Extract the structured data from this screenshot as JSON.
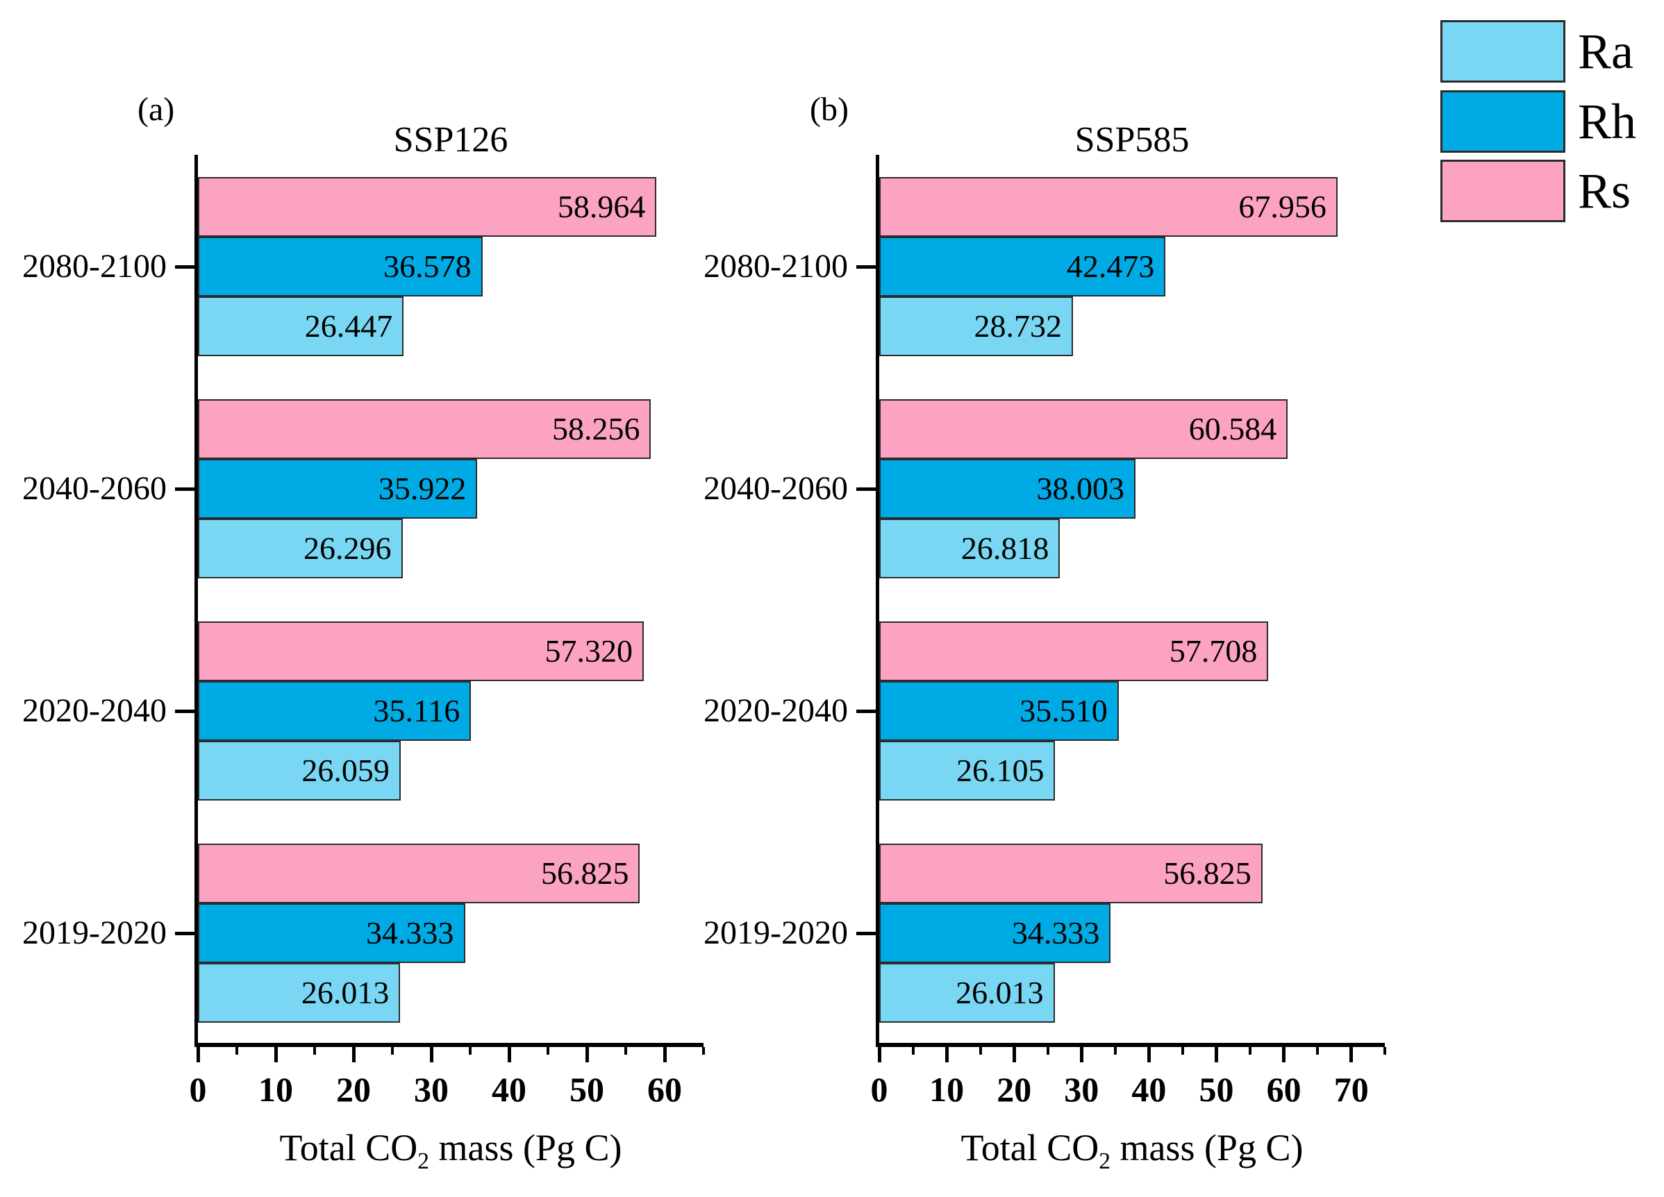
{
  "legend": {
    "position": "top-right",
    "items": [
      {
        "label": "Ra",
        "color": "#79D7F3"
      },
      {
        "label": "Rh",
        "color": "#00ABE5"
      },
      {
        "label": "Rs",
        "color": "#FCA3C4"
      }
    ]
  },
  "xaxis_label": {
    "pre": "Total CO",
    "sub": "2",
    "post": " mass (Pg C)"
  },
  "chart_data": [
    {
      "type": "bar",
      "orientation": "horizontal",
      "panel_label": "(a)",
      "title": "SSP126",
      "xlabel": "Total CO2 mass (Pg C)",
      "categories": [
        "2080-2100",
        "2040-2060",
        "2020-2040",
        "2019-2020"
      ],
      "series": [
        {
          "name": "Rs",
          "color": "#FCA3C4",
          "values": [
            58.964,
            58.256,
            57.32,
            56.825
          ]
        },
        {
          "name": "Rh",
          "color": "#00ABE5",
          "values": [
            36.578,
            35.922,
            35.116,
            34.333
          ]
        },
        {
          "name": "Ra",
          "color": "#79D7F3",
          "values": [
            26.447,
            26.296,
            26.059,
            26.013
          ]
        }
      ],
      "xlim": [
        0,
        65
      ],
      "xticks": [
        0,
        10,
        20,
        30,
        40,
        50,
        60
      ],
      "minor_tick_step": 5,
      "value_labels": true,
      "grid": false,
      "legend_position": "outside-top-right"
    },
    {
      "type": "bar",
      "orientation": "horizontal",
      "panel_label": "(b)",
      "title": "SSP585",
      "xlabel": "Total CO2 mass (Pg C)",
      "categories": [
        "2080-2100",
        "2040-2060",
        "2020-2040",
        "2019-2020"
      ],
      "series": [
        {
          "name": "Rs",
          "color": "#FCA3C4",
          "values": [
            67.956,
            60.584,
            57.708,
            56.825
          ]
        },
        {
          "name": "Rh",
          "color": "#00ABE5",
          "values": [
            42.473,
            38.003,
            35.51,
            34.333
          ]
        },
        {
          "name": "Ra",
          "color": "#79D7F3",
          "values": [
            28.732,
            26.818,
            26.105,
            26.013
          ]
        }
      ],
      "xlim": [
        0,
        75
      ],
      "xticks": [
        0,
        10,
        20,
        30,
        40,
        50,
        60,
        70
      ],
      "minor_tick_step": 5,
      "value_labels": true,
      "grid": false,
      "legend_position": "outside-top-right"
    }
  ]
}
